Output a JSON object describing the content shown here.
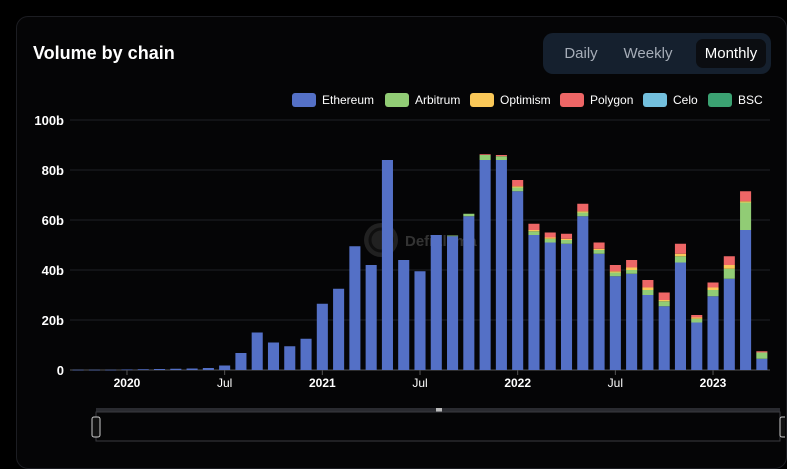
{
  "header": {
    "title": "Volume by chain"
  },
  "toggle": {
    "options": [
      "Daily",
      "Weekly",
      "Monthly"
    ],
    "active": "Monthly"
  },
  "watermark": "DefiLlama",
  "chart_data": {
    "type": "bar",
    "stacked": true,
    "title": "Volume by chain",
    "ylim": [
      0,
      100
    ],
    "yticks": [
      "0",
      "20b",
      "40b",
      "60b",
      "80b",
      "100b"
    ],
    "xtick_labels": [
      {
        "label": "2020",
        "bold": true,
        "at": "2020-01"
      },
      {
        "label": "Jul",
        "bold": false,
        "at": "2020-07"
      },
      {
        "label": "2021",
        "bold": true,
        "at": "2021-01"
      },
      {
        "label": "Jul",
        "bold": false,
        "at": "2021-07"
      },
      {
        "label": "2022",
        "bold": true,
        "at": "2022-01"
      },
      {
        "label": "Jul",
        "bold": false,
        "at": "2022-07"
      },
      {
        "label": "2023",
        "bold": true,
        "at": "2023-01"
      }
    ],
    "categories": [
      "2019-10",
      "2019-11",
      "2019-12",
      "2020-01",
      "2020-02",
      "2020-03",
      "2020-04",
      "2020-05",
      "2020-06",
      "2020-07",
      "2020-08",
      "2020-09",
      "2020-10",
      "2020-11",
      "2020-12",
      "2021-01",
      "2021-02",
      "2021-03",
      "2021-04",
      "2021-05",
      "2021-06",
      "2021-07",
      "2021-08",
      "2021-09",
      "2021-10",
      "2021-11",
      "2021-12",
      "2022-01",
      "2022-02",
      "2022-03",
      "2022-04",
      "2022-05",
      "2022-06",
      "2022-07",
      "2022-08",
      "2022-09",
      "2022-10",
      "2022-11",
      "2022-12",
      "2023-01",
      "2023-02",
      "2023-03",
      "2023-04"
    ],
    "series": [
      {
        "name": "Ethereum",
        "color": "#5470c6",
        "values": [
          0.1,
          0.1,
          0.1,
          0.2,
          0.3,
          0.4,
          0.5,
          0.6,
          0.8,
          1.8,
          6.8,
          15,
          11,
          9.5,
          12.5,
          26.5,
          32.5,
          49.5,
          42,
          84,
          44,
          39.5,
          54,
          53.5,
          61.5,
          84,
          84,
          71.5,
          54,
          51,
          50.5,
          61.5,
          46.5,
          37.5,
          38.5,
          30,
          25.5,
          43,
          19,
          29.5,
          36.5,
          56,
          4.5
        ]
      },
      {
        "name": "Arbitrum",
        "color": "#91cc75",
        "values": [
          0,
          0,
          0,
          0,
          0,
          0,
          0,
          0,
          0,
          0,
          0,
          0,
          0,
          0,
          0,
          0,
          0,
          0,
          0,
          0,
          0,
          0,
          0,
          0.3,
          1,
          2,
          1.5,
          1.5,
          1.5,
          1.5,
          1.5,
          1.5,
          1.5,
          1.5,
          1.5,
          2,
          2,
          2.5,
          1.5,
          2.5,
          4,
          11,
          2.5
        ]
      },
      {
        "name": "Optimism",
        "color": "#fac858",
        "values": [
          0,
          0,
          0,
          0,
          0,
          0,
          0,
          0,
          0,
          0,
          0,
          0,
          0,
          0,
          0,
          0,
          0,
          0,
          0,
          0,
          0,
          0,
          0,
          0,
          0,
          0,
          0,
          0.5,
          0.5,
          0.5,
          0.5,
          0.5,
          0.5,
          0.5,
          1,
          1,
          0.5,
          1,
          0.5,
          1,
          1.5,
          0.5,
          0
        ]
      },
      {
        "name": "Polygon",
        "color": "#ee6666",
        "values": [
          0,
          0,
          0,
          0,
          0,
          0,
          0,
          0,
          0,
          0,
          0,
          0,
          0,
          0,
          0,
          0,
          0,
          0,
          0,
          0,
          0,
          0,
          0,
          0,
          0,
          0.3,
          0.5,
          2.5,
          2.5,
          2,
          2,
          3,
          2.5,
          2.5,
          3,
          3,
          3,
          4,
          1,
          2,
          3.5,
          4,
          0.5
        ]
      },
      {
        "name": "Celo",
        "color": "#73c0de",
        "values": [
          0,
          0,
          0,
          0,
          0,
          0,
          0,
          0,
          0,
          0,
          0,
          0,
          0,
          0,
          0,
          0,
          0,
          0,
          0,
          0,
          0,
          0,
          0,
          0,
          0,
          0,
          0,
          0,
          0,
          0,
          0,
          0,
          0,
          0,
          0,
          0,
          0,
          0,
          0,
          0,
          0,
          0,
          0
        ]
      },
      {
        "name": "BSC",
        "color": "#3ba272",
        "values": [
          0,
          0,
          0,
          0,
          0,
          0,
          0,
          0,
          0,
          0,
          0,
          0,
          0,
          0,
          0,
          0,
          0,
          0,
          0,
          0,
          0,
          0,
          0,
          0,
          0,
          0,
          0,
          0,
          0,
          0,
          0,
          0,
          0,
          0,
          0,
          0,
          0,
          0,
          0,
          0,
          0,
          0,
          0
        ]
      }
    ],
    "grid": true,
    "legend_position": "top-right",
    "has_zoom_slider": true
  }
}
